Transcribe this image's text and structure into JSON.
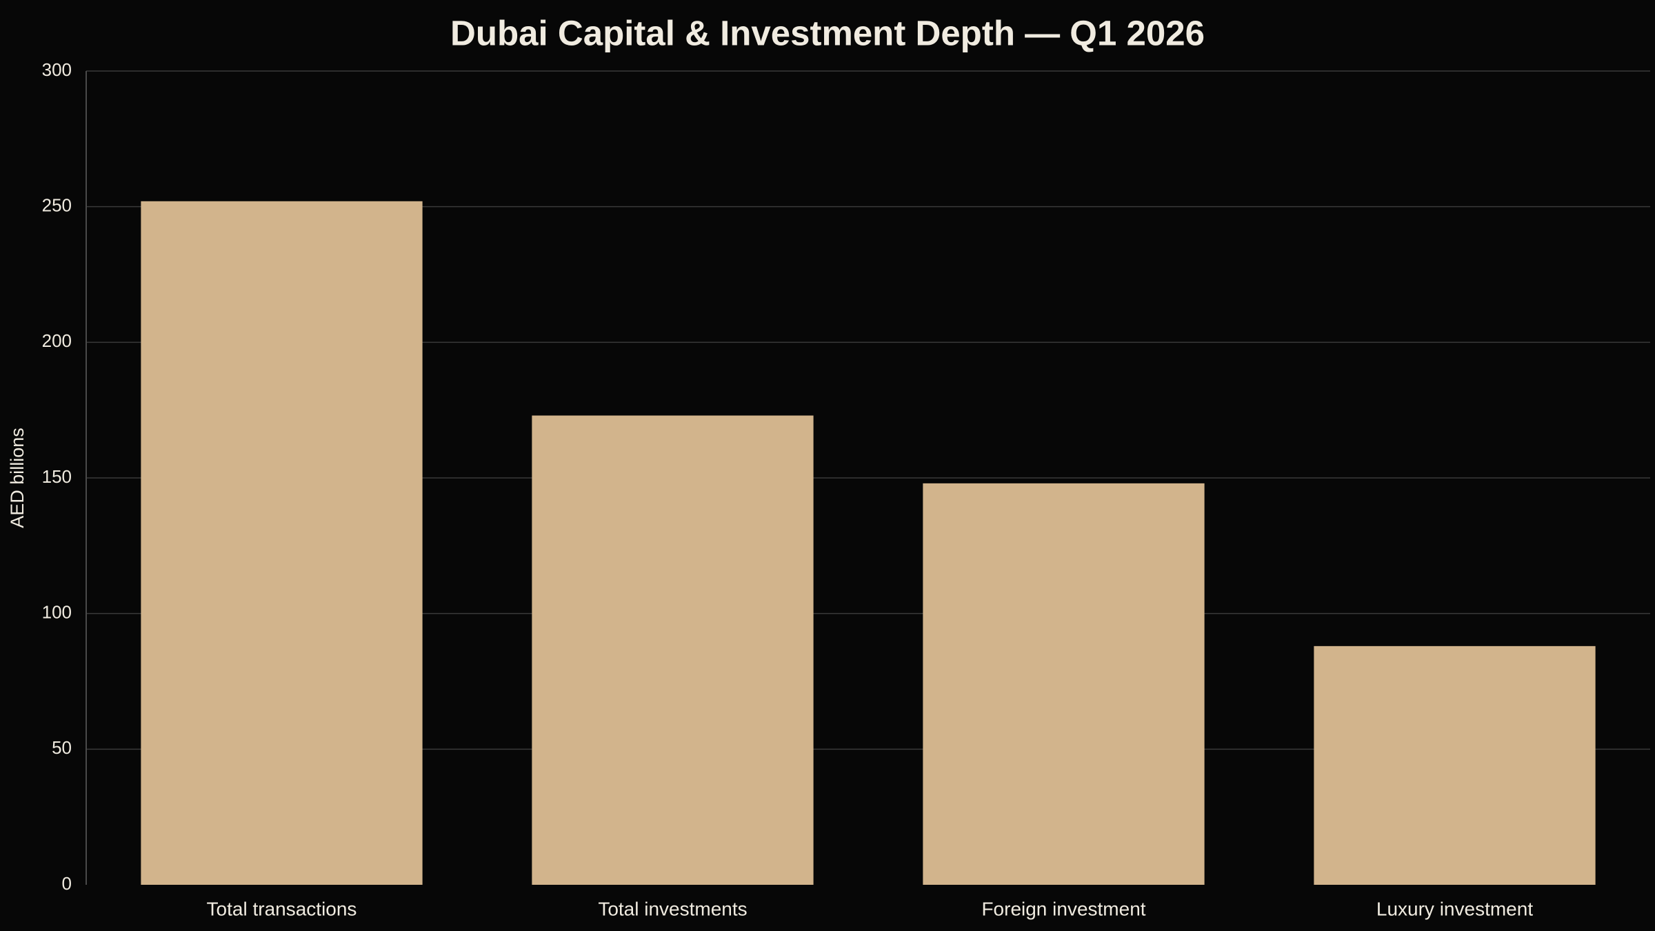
{
  "colors": {
    "background": "#070707",
    "bar": "#d2b48c",
    "text": "#f0ebe0",
    "grid": "#3a3a3a",
    "axis": "#4a4a4a"
  },
  "chart_data": {
    "type": "bar",
    "title": "Dubai Capital & Investment Depth — Q1 2026",
    "xlabel": "",
    "ylabel": "AED billions",
    "categories": [
      "Total transactions",
      "Total investments",
      "Foreign investment",
      "Luxury investment"
    ],
    "values": [
      252,
      173,
      148,
      88
    ],
    "ylim": [
      0,
      300
    ],
    "yticks": [
      0,
      50,
      100,
      150,
      200,
      250,
      300
    ],
    "grid": true,
    "legend": "none"
  }
}
